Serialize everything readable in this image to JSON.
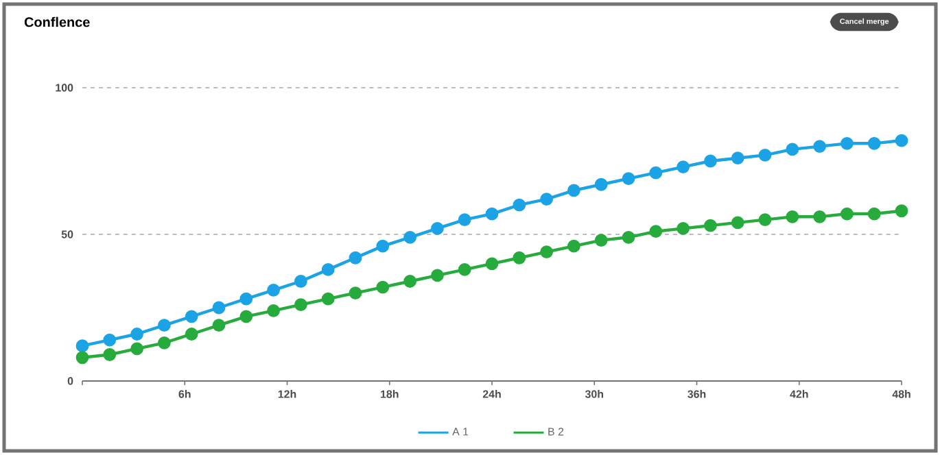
{
  "chart_data": {
    "type": "line",
    "title": "Conflence",
    "annotations": [
      "Cancel merge"
    ],
    "x": [
      0,
      1.6,
      3.2,
      4.8,
      6.4,
      8,
      9.6,
      11.2,
      12.8,
      14.4,
      16,
      17.6,
      19.2,
      20.8,
      22.4,
      24,
      25.6,
      27.2,
      28.8,
      30.4,
      32,
      33.6,
      35.2,
      36.8,
      38.4,
      40,
      41.6,
      43.2,
      44.8,
      46.4,
      48
    ],
    "series": [
      {
        "name": "A 1",
        "color": "#1ba3e6",
        "values": [
          12,
          14,
          16,
          19,
          22,
          25,
          28,
          31,
          34,
          38,
          42,
          46,
          49,
          52,
          55,
          57,
          60,
          62,
          65,
          67,
          69,
          71,
          73,
          75,
          76,
          77,
          79,
          80,
          81,
          81,
          82
        ]
      },
      {
        "name": "B 2",
        "color": "#27ab3c",
        "values": [
          8,
          9,
          11,
          13,
          16,
          19,
          22,
          24,
          26,
          28,
          30,
          32,
          34,
          36,
          38,
          40,
          42,
          44,
          46,
          48,
          49,
          51,
          52,
          53,
          54,
          55,
          56,
          56,
          57,
          57,
          58
        ]
      }
    ],
    "xlim": [
      0,
      48
    ],
    "xticks": [
      {
        "value": 0,
        "label": null
      },
      {
        "value": 6,
        "label": "6h"
      },
      {
        "value": 12,
        "label": "12h"
      },
      {
        "value": 18,
        "label": "18h"
      },
      {
        "value": 24,
        "label": "24h"
      },
      {
        "value": 30,
        "label": "30h"
      },
      {
        "value": 36,
        "label": "36h"
      },
      {
        "value": 42,
        "label": "42h"
      },
      {
        "value": 48,
        "label": "48h"
      }
    ],
    "ylim": [
      0,
      100
    ],
    "yticks": [
      0,
      50,
      100
    ],
    "grid": "y",
    "legend": "bottom",
    "marker": "circle",
    "line_style": "solid"
  }
}
